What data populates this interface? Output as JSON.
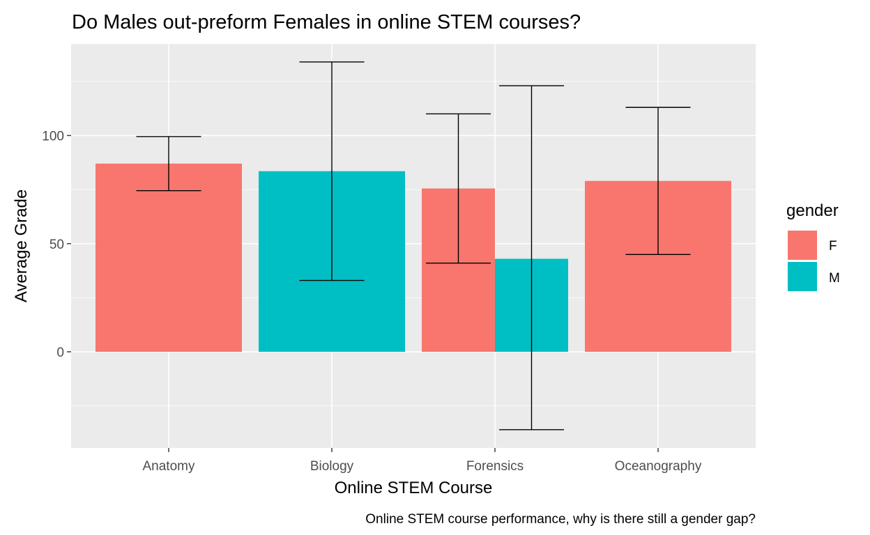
{
  "chart_data": {
    "type": "bar",
    "title": "Do Males out-preform Females in online STEM courses?",
    "caption": "Online STEM course performance, why is there still a gender gap?",
    "xlabel": "Online STEM Course",
    "ylabel": "Average Grade",
    "categories": [
      "Anatomy",
      "Biology",
      "Forensics",
      "Oceanography"
    ],
    "y_ticks": [
      0,
      50,
      100
    ],
    "y_tick_labels": [
      "0",
      "50",
      "100"
    ],
    "ylim": [
      -45,
      143
    ],
    "grid": true,
    "legend": {
      "title": "gender",
      "position": "right",
      "entries": [
        {
          "key": "F",
          "label": "F",
          "color": "#F8766D"
        },
        {
          "key": "M",
          "label": "M",
          "color": "#00BFC4"
        }
      ]
    },
    "bars": [
      {
        "category": "Anatomy",
        "gender": "F",
        "value": 87,
        "error_low": 74.5,
        "error_high": 99.5
      },
      {
        "category": "Biology",
        "gender": "M",
        "value": 83.5,
        "error_low": 33,
        "error_high": 134
      },
      {
        "category": "Forensics",
        "gender": "F",
        "value": 75.5,
        "error_low": 41,
        "error_high": 110
      },
      {
        "category": "Forensics",
        "gender": "M",
        "value": 43,
        "error_low": -36,
        "error_high": 123
      },
      {
        "category": "Oceanography",
        "gender": "F",
        "value": 79,
        "error_low": 45,
        "error_high": 113
      }
    ],
    "colors": {
      "panel_background": "#EBEBEB",
      "grid_line": "#FFFFFF",
      "error_bar": "#000000"
    }
  }
}
